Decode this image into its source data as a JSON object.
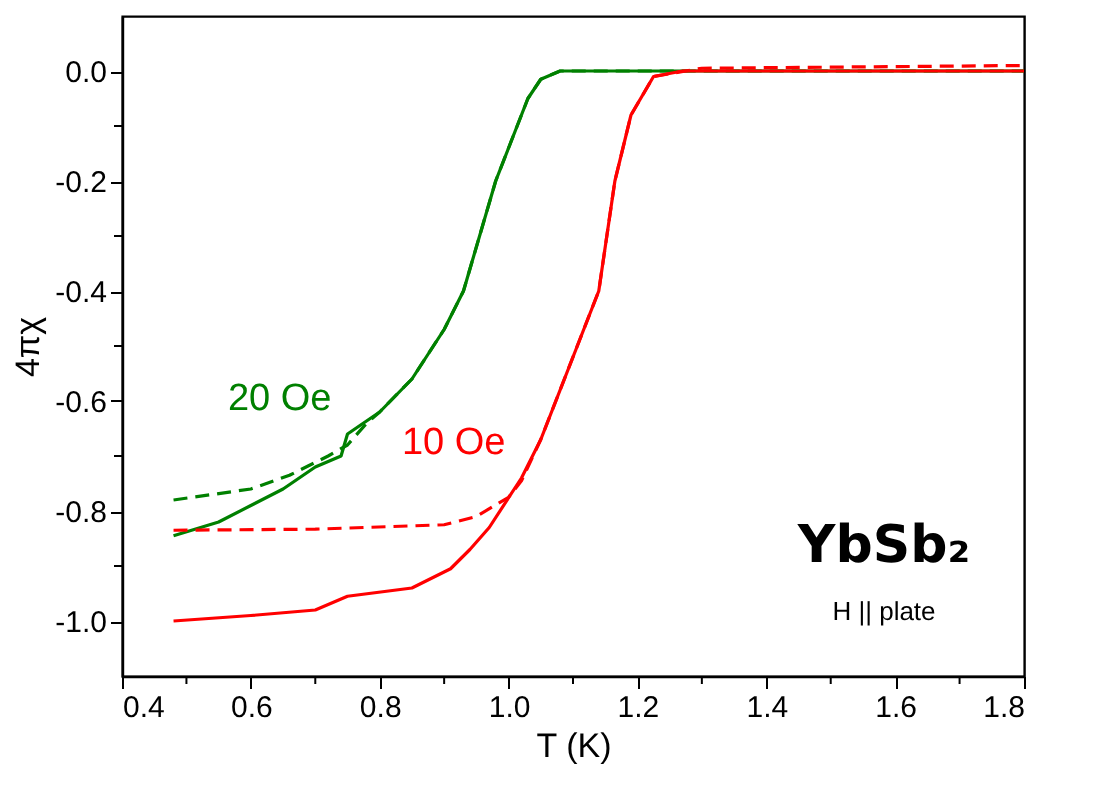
{
  "chart_data": {
    "type": "line",
    "xlabel": "T (K)",
    "ylabel": "4πχ",
    "xlim": [
      0.4,
      1.8
    ],
    "ylim": [
      -1.1,
      0.1
    ],
    "xticks": [
      {
        "value": 0.4,
        "label": "0.4"
      },
      {
        "value": 0.5,
        "label": null
      },
      {
        "value": 0.6,
        "label": "0.6"
      },
      {
        "value": 0.7,
        "label": null
      },
      {
        "value": 0.8,
        "label": "0.8"
      },
      {
        "value": 0.9,
        "label": null
      },
      {
        "value": 1.0,
        "label": "1.0"
      },
      {
        "value": 1.1,
        "label": null
      },
      {
        "value": 1.2,
        "label": "1.2"
      },
      {
        "value": 1.3,
        "label": null
      },
      {
        "value": 1.4,
        "label": "1.4"
      },
      {
        "value": 1.5,
        "label": null
      },
      {
        "value": 1.6,
        "label": "1.6"
      },
      {
        "value": 1.7,
        "label": null
      },
      {
        "value": 1.8,
        "label": "1.8"
      }
    ],
    "yticks": [
      {
        "value": -1.0,
        "label": "-1.0"
      },
      {
        "value": -0.9,
        "label": null
      },
      {
        "value": -0.8,
        "label": "-0.8"
      },
      {
        "value": -0.7,
        "label": null
      },
      {
        "value": -0.6,
        "label": "-0.6"
      },
      {
        "value": -0.5,
        "label": null
      },
      {
        "value": -0.4,
        "label": "-0.4"
      },
      {
        "value": -0.3,
        "label": null
      },
      {
        "value": -0.2,
        "label": "-0.2"
      },
      {
        "value": -0.1,
        "label": null
      },
      {
        "value": 0.0,
        "label": "0.0"
      }
    ],
    "grid": false,
    "marker": "none",
    "series": [
      {
        "name": "20 Oe",
        "color": "#008000",
        "line_style": "solid",
        "x": [
          0.48,
          0.55,
          0.6,
          0.65,
          0.7,
          0.74,
          0.75,
          0.8,
          0.85,
          0.9,
          0.93,
          0.98,
          1.01,
          1.03,
          1.05,
          1.08,
          1.2,
          1.8
        ],
        "values": [
          -0.845,
          -0.82,
          -0.79,
          -0.76,
          -0.72,
          -0.7,
          -0.66,
          -0.62,
          -0.56,
          -0.47,
          -0.4,
          -0.2,
          -0.11,
          -0.05,
          -0.015,
          0.0,
          0.0,
          0.0
        ]
      },
      {
        "color": "#008000",
        "line_style": "dashed",
        "x": [
          0.48,
          0.6,
          0.66,
          0.72,
          0.75,
          0.78,
          0.8,
          0.85,
          0.9,
          0.93,
          0.98,
          1.01,
          1.03,
          1.05,
          1.08,
          1.2,
          1.8
        ],
        "values": [
          -0.78,
          -0.76,
          -0.735,
          -0.7,
          -0.68,
          -0.64,
          -0.62,
          -0.56,
          -0.47,
          -0.4,
          -0.2,
          -0.11,
          -0.05,
          -0.015,
          0.0,
          0.0,
          0.0
        ]
      },
      {
        "name": "10 Oe",
        "color": "#ff0000",
        "line_style": "solid",
        "x": [
          0.48,
          0.6,
          0.7,
          0.75,
          0.85,
          0.91,
          0.94,
          0.97,
          1.02,
          1.05,
          1.08,
          1.11,
          1.14,
          1.165,
          1.19,
          1.225,
          1.27,
          1.8
        ],
        "values": [
          -1.0,
          -0.99,
          -0.98,
          -0.955,
          -0.94,
          -0.905,
          -0.87,
          -0.83,
          -0.74,
          -0.67,
          -0.58,
          -0.49,
          -0.4,
          -0.2,
          -0.08,
          -0.01,
          0.0,
          0.0
        ]
      },
      {
        "color": "#ff0000",
        "line_style": "dashed",
        "x": [
          0.48,
          0.7,
          0.9,
          0.95,
          1.0,
          1.02,
          1.05,
          1.08,
          1.11,
          1.14,
          1.165,
          1.19,
          1.225,
          1.3,
          1.8
        ],
        "values": [
          -0.835,
          -0.833,
          -0.825,
          -0.81,
          -0.775,
          -0.745,
          -0.67,
          -0.58,
          -0.49,
          -0.4,
          -0.2,
          -0.08,
          -0.01,
          0.005,
          0.01
        ]
      }
    ],
    "annotations": [
      "YbSb₂",
      "H || plate"
    ]
  }
}
